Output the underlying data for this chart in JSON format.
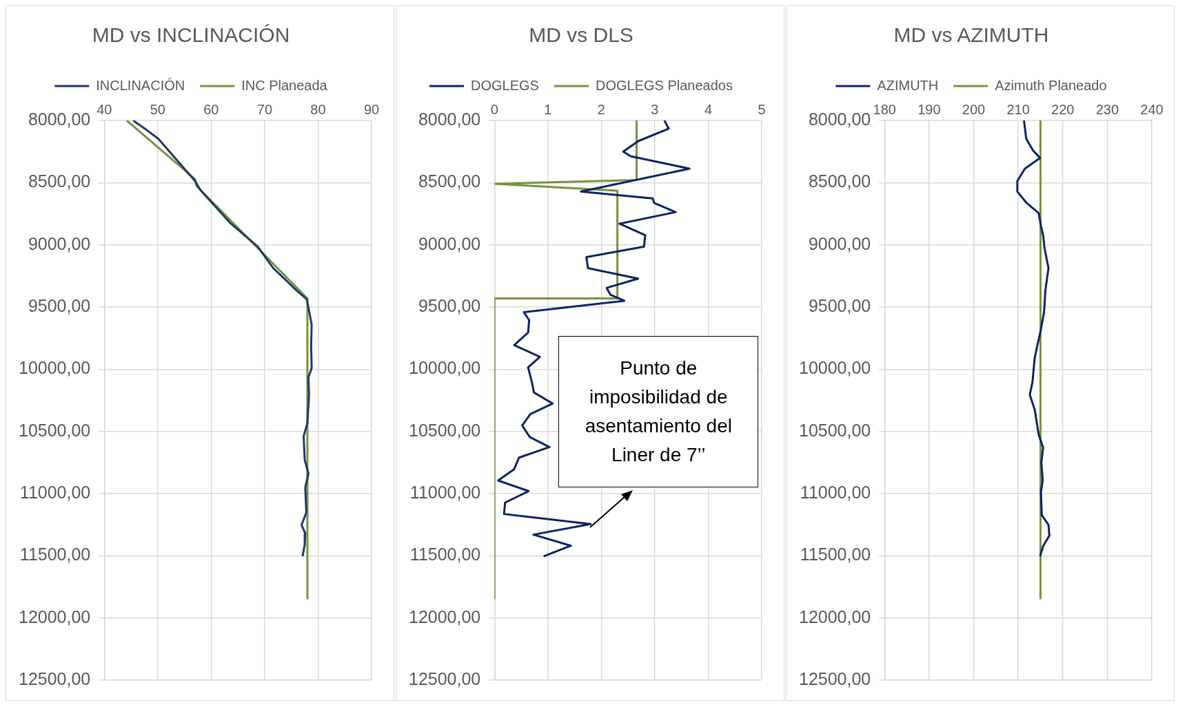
{
  "chart_data": [
    {
      "type": "line",
      "title": "MD vs INCLINACIÓN",
      "legend": "top",
      "grid": true,
      "xlim": [
        40,
        90
      ],
      "xticks": [
        40,
        50,
        60,
        70,
        80,
        90
      ],
      "ylim": [
        12500,
        8000
      ],
      "yticks": [
        {
          "value": 8000,
          "label": "8000,00"
        },
        {
          "value": 8500,
          "label": "8500,00"
        },
        {
          "value": 9000,
          "label": "9000,00"
        },
        {
          "value": 9500,
          "label": "9500,00"
        },
        {
          "value": 10000,
          "label": "10000,00"
        },
        {
          "value": 10500,
          "label": "10500,00"
        },
        {
          "value": 11000,
          "label": "11000,00"
        },
        {
          "value": 11500,
          "label": "11500,00"
        },
        {
          "value": 12000,
          "label": "12000,00"
        },
        {
          "value": 12500,
          "label": "12500,00"
        }
      ],
      "series": [
        {
          "name": "INCLINACIÓN",
          "color": "#203864",
          "x": [
            45.4,
            47.6,
            50.1,
            57.0,
            58.0,
            63.7,
            68.7,
            71.6,
            73.7,
            75.9,
            77.9,
            78.8,
            78.7,
            78.8,
            78.2,
            78.3,
            78.0,
            77.3,
            77.5,
            78.2,
            77.6,
            77.8,
            76.9,
            77.6,
            77.5,
            77.1
          ],
          "values": [
            8000,
            8066,
            8147,
            8487,
            8560,
            8830,
            9014,
            9187,
            9272,
            9364,
            9438,
            9641,
            9807,
            9991,
            10065,
            10212,
            10434,
            10537,
            10729,
            10840,
            10950,
            11153,
            11252,
            11319,
            11411,
            11504
          ]
        },
        {
          "name": "INC Planeada",
          "color": "#77933c",
          "x": [
            44.2,
            57.0,
            57.2,
            78.0,
            78.0
          ],
          "values": [
            8000,
            8472,
            8524,
            9431,
            11843
          ]
        }
      ]
    },
    {
      "type": "line",
      "title": "MD vs DLS",
      "legend": "top",
      "grid": true,
      "xlim": [
        0,
        5
      ],
      "xticks": [
        0,
        1,
        2,
        3,
        4,
        5
      ],
      "ylim": [
        12500,
        8000
      ],
      "yticks": [
        {
          "value": 8000,
          "label": "8000,00"
        },
        {
          "value": 8500,
          "label": "8500,00"
        },
        {
          "value": 9000,
          "label": "9000,00"
        },
        {
          "value": 9500,
          "label": "9500,00"
        },
        {
          "value": 10000,
          "label": "10000,00"
        },
        {
          "value": 10500,
          "label": "10500,00"
        },
        {
          "value": 11000,
          "label": "11000,00"
        },
        {
          "value": 11500,
          "label": "11500,00"
        },
        {
          "value": 12000,
          "label": "12000,00"
        },
        {
          "value": 12500,
          "label": "12500,00"
        }
      ],
      "series": [
        {
          "name": "DOGLEGS",
          "color": "#0d2365",
          "x": [
            3.18,
            3.26,
            2.69,
            2.41,
            2.55,
            3.65,
            1.62,
            2.96,
            2.99,
            3.39,
            2.34,
            2.82,
            2.8,
            1.72,
            1.75,
            2.69,
            2.1,
            2.17,
            2.43,
            0.55,
            0.65,
            0.63,
            0.37,
            0.85,
            0.63,
            0.7,
            0.74,
            1.09,
            0.67,
            0.52,
            0.66,
            1.03,
            0.46,
            0.37,
            0.07,
            0.64,
            0.2,
            0.18,
            1.8,
            0.73,
            1.43,
            0.92
          ],
          "values": [
            8000,
            8066,
            8166,
            8251,
            8288,
            8387,
            8572,
            8627,
            8664,
            8737,
            8830,
            8922,
            9014,
            9099,
            9187,
            9272,
            9346,
            9401,
            9450,
            9542,
            9605,
            9705,
            9807,
            9900,
            9985,
            10103,
            10187,
            10276,
            10361,
            10453,
            10545,
            10626,
            10711,
            10803,
            10895,
            10980,
            11072,
            11164,
            11245,
            11330,
            11419,
            11504
          ]
        },
        {
          "name": "DOGLEGS Planeados",
          "color": "#77933c",
          "x": [
            2.66,
            2.66,
            0,
            2.3,
            2.3,
            0,
            0
          ],
          "values": [
            8000,
            8479,
            8509,
            8564,
            9431,
            9431,
            11843
          ]
        }
      ],
      "annotations": [
        "Punto de imposibilidad de asentamiento del Liner de  7’’"
      ]
    },
    {
      "type": "line",
      "title": "MD vs AZIMUTH",
      "legend": "top",
      "grid": true,
      "xlim": [
        180,
        240
      ],
      "xticks": [
        180,
        190,
        200,
        210,
        220,
        230,
        240
      ],
      "ylim": [
        12500,
        8000
      ],
      "yticks": [
        {
          "value": 8000,
          "label": "8000,00"
        },
        {
          "value": 8500,
          "label": "8500,00"
        },
        {
          "value": 9000,
          "label": "9000,00"
        },
        {
          "value": 9500,
          "label": "9500,00"
        },
        {
          "value": 10000,
          "label": "10000,00"
        },
        {
          "value": 10500,
          "label": "10500,00"
        },
        {
          "value": 11000,
          "label": "11000,00"
        },
        {
          "value": 11500,
          "label": "11500,00"
        },
        {
          "value": 12000,
          "label": "12000,00"
        },
        {
          "value": 12500,
          "label": "12500,00"
        }
      ],
      "series": [
        {
          "name": "AZIMUTH",
          "color": "#0d2365",
          "x": [
            211.3,
            211.8,
            213.3,
            214.9,
            211.5,
            209.8,
            209.8,
            211.9,
            214.6,
            215.1,
            215.6,
            215.9,
            216.8,
            216.1,
            215.8,
            215.0,
            214.3,
            213.7,
            213.2,
            212.6,
            213.7,
            214.6,
            215.6,
            215.2,
            215.5,
            215.1,
            215.3,
            216.8,
            217.0,
            215.6,
            214.9
          ],
          "values": [
            8000,
            8147,
            8240,
            8302,
            8387,
            8487,
            8572,
            8664,
            8745,
            8848,
            8922,
            9025,
            9187,
            9364,
            9542,
            9697,
            9807,
            9911,
            10103,
            10206,
            10324,
            10527,
            10630,
            10748,
            10895,
            10987,
            11172,
            11252,
            11337,
            11422,
            11504
          ]
        },
        {
          "name": "Azimuth Planeado",
          "color": "#77933c",
          "x": [
            215,
            215
          ],
          "values": [
            8000,
            11843
          ]
        }
      ]
    }
  ]
}
